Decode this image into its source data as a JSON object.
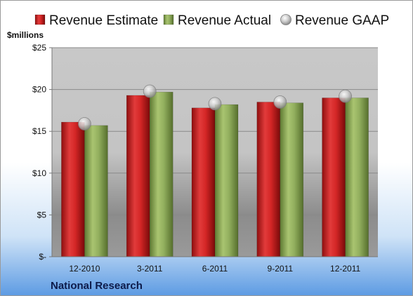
{
  "company": "National Research",
  "chart_data": {
    "type": "bar",
    "unit_label": "$millions",
    "categories": [
      "12-2010",
      "3-2011",
      "6-2011",
      "9-2011",
      "12-2011"
    ],
    "series": [
      {
        "name": "Revenue Estimate",
        "kind": "bar",
        "color": "#cc1f1f",
        "values": [
          16.1,
          19.3,
          17.8,
          18.5,
          19.0
        ]
      },
      {
        "name": "Revenue Actual",
        "kind": "bar",
        "color": "#8fac5c",
        "values": [
          15.7,
          19.7,
          18.2,
          18.4,
          19.0
        ]
      },
      {
        "name": "Revenue GAAP",
        "kind": "marker",
        "color": "#c8c8c8",
        "values": [
          15.9,
          19.8,
          18.3,
          18.5,
          19.2
        ]
      }
    ],
    "ylim": [
      0,
      25
    ],
    "yticks": [
      0,
      5,
      10,
      15,
      20,
      25
    ],
    "ytick_labels": [
      "$-",
      "$5",
      "$10",
      "$15",
      "$20",
      "$25"
    ],
    "grid": true,
    "legend": "top"
  }
}
